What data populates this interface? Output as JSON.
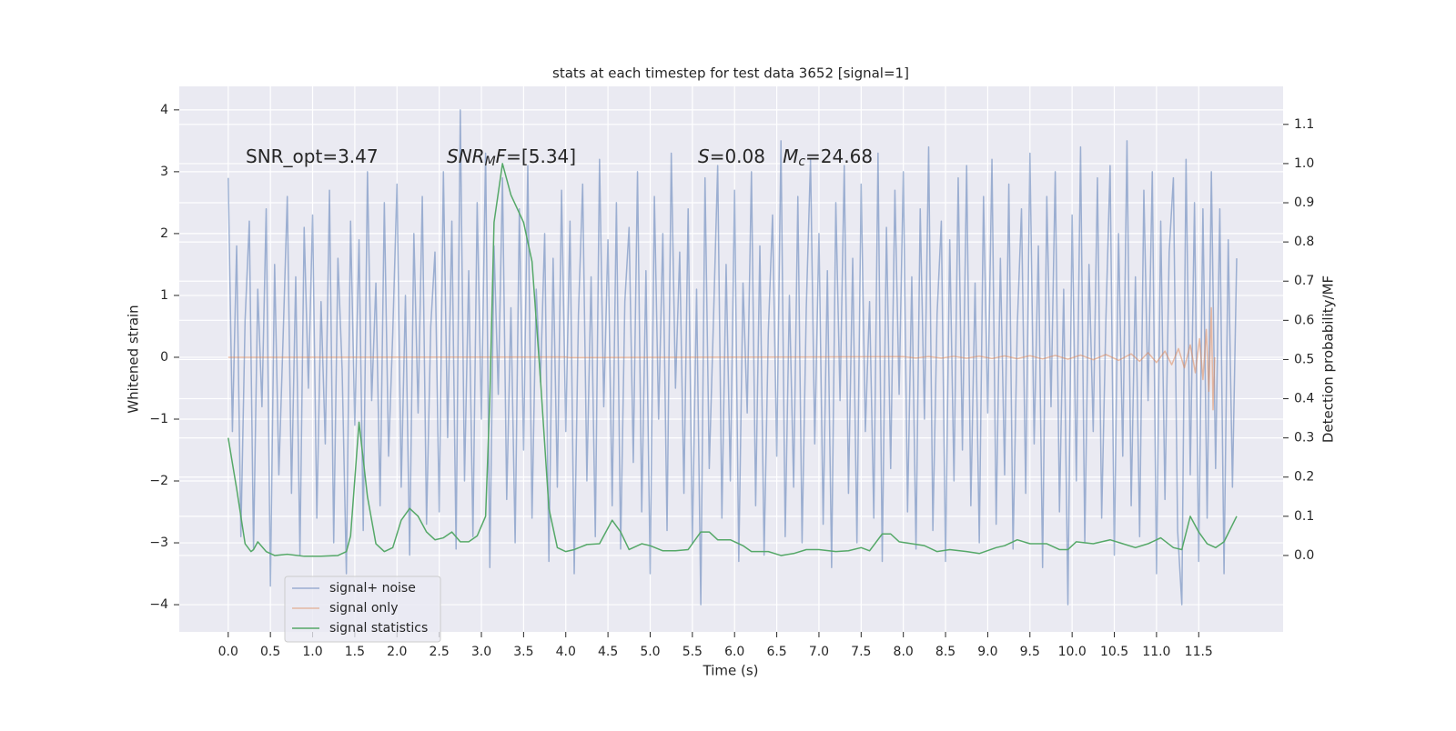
{
  "chart_data": {
    "type": "line",
    "title": "stats at each timestep for test data 3652 [signal=1]",
    "x_label": "Time (s)",
    "y_label": "Whitened strain",
    "y2_label": "Detection probability/MF",
    "xlim": [
      -0.58,
      12.5
    ],
    "ylim": [
      -4.44,
      4.38
    ],
    "y2lim": [
      -0.195,
      1.197
    ],
    "xticks": [
      {
        "value": 0,
        "label": "0.0"
      },
      0.5,
      {
        "value": 1,
        "label": "1.0"
      },
      1.5,
      {
        "value": 2,
        "label": "2.0"
      },
      2.5,
      {
        "value": 3,
        "label": "3.0"
      },
      3.5,
      {
        "value": 4,
        "label": "4.0"
      },
      4.5,
      {
        "value": 5,
        "label": "5.0"
      },
      5.5,
      {
        "value": 6,
        "label": "6.0"
      },
      6.5,
      {
        "value": 7,
        "label": "7.0"
      },
      7.5,
      {
        "value": 8,
        "label": "8.0"
      },
      8.5,
      {
        "value": 9,
        "label": "9.0"
      },
      9.5,
      {
        "value": 10,
        "label": "10.0"
      },
      10.5,
      {
        "value": 11,
        "label": "11.0"
      },
      11.5
    ],
    "yticks": [
      {
        "value": -4,
        "label": "−4"
      },
      {
        "value": -3,
        "label": "−3"
      },
      {
        "value": -2,
        "label": "−2"
      },
      {
        "value": -1,
        "label": "−1"
      },
      0,
      1,
      2,
      3,
      4
    ],
    "y2ticks": [
      {
        "value": 0,
        "label": "0.0"
      },
      0.1,
      0.2,
      0.3,
      0.4,
      0.5,
      0.6,
      0.7,
      0.8,
      0.9,
      {
        "value": 1,
        "label": "1.0"
      },
      1.1
    ],
    "grid": true,
    "legend": "lower left",
    "annotations": [
      {
        "parts": [
          {
            "text": "SNR_opt=3.47"
          }
        ]
      },
      {
        "parts": [
          {
            "text": "SNR",
            "italic": true
          },
          {
            "text": "M",
            "italic": true,
            "sub": true
          },
          {
            "text": "F",
            "italic": true
          },
          {
            "text": "=[5.34]"
          }
        ]
      },
      {
        "parts": [
          {
            "text": "S",
            "italic": true
          },
          {
            "text": "=0.08   "
          },
          {
            "text": "M",
            "italic": true
          },
          {
            "text": "c",
            "italic": true,
            "sub": true
          },
          {
            "text": "=24.68"
          }
        ]
      }
    ],
    "series": [
      {
        "name": "signal+ noise",
        "color": "#4c72b0",
        "opacity": 0.5,
        "x": [
          0,
          0.05,
          0.1,
          0.15,
          0.2,
          0.25,
          0.3,
          0.35,
          0.4,
          0.45,
          0.5,
          0.55,
          0.6,
          0.65,
          0.7,
          0.75,
          0.8,
          0.85,
          0.9,
          0.95,
          1,
          1.05,
          1.1,
          1.15,
          1.2,
          1.25,
          1.3,
          1.35,
          1.4,
          1.45,
          1.5,
          1.55,
          1.6,
          1.65,
          1.7,
          1.75,
          1.8,
          1.85,
          1.9,
          1.95,
          2,
          2.05,
          2.1,
          2.15,
          2.2,
          2.25,
          2.3,
          2.35,
          2.4,
          2.45,
          2.5,
          2.55,
          2.6,
          2.65,
          2.7,
          2.75,
          2.8,
          2.85,
          2.9,
          2.95,
          3,
          3.05,
          3.1,
          3.15,
          3.2,
          3.25,
          3.3,
          3.35,
          3.4,
          3.45,
          3.5,
          3.55,
          3.6,
          3.65,
          3.7,
          3.75,
          3.8,
          3.85,
          3.9,
          3.95,
          4,
          4.05,
          4.1,
          4.15,
          4.2,
          4.25,
          4.3,
          4.35,
          4.4,
          4.45,
          4.5,
          4.55,
          4.6,
          4.65,
          4.7,
          4.75,
          4.8,
          4.85,
          4.9,
          4.95,
          5,
          5.05,
          5.1,
          5.15,
          5.2,
          5.25,
          5.3,
          5.35,
          5.4,
          5.45,
          5.5,
          5.55,
          5.6,
          5.65,
          5.7,
          5.75,
          5.8,
          5.85,
          5.9,
          5.95,
          6,
          6.05,
          6.1,
          6.15,
          6.2,
          6.25,
          6.3,
          6.35,
          6.4,
          6.45,
          6.5,
          6.55,
          6.6,
          6.65,
          6.7,
          6.75,
          6.8,
          6.85,
          6.9,
          6.95,
          7,
          7.05,
          7.1,
          7.15,
          7.2,
          7.25,
          7.3,
          7.35,
          7.4,
          7.45,
          7.5,
          7.55,
          7.6,
          7.65,
          7.7,
          7.75,
          7.8,
          7.85,
          7.9,
          7.95,
          8,
          8.05,
          8.1,
          8.15,
          8.2,
          8.25,
          8.3,
          8.35,
          8.4,
          8.45,
          8.5,
          8.55,
          8.6,
          8.65,
          8.7,
          8.75,
          8.8,
          8.85,
          8.9,
          8.95,
          9,
          9.05,
          9.1,
          9.15,
          9.2,
          9.25,
          9.3,
          9.35,
          9.4,
          9.45,
          9.5,
          9.55,
          9.6,
          9.65,
          9.7,
          9.75,
          9.8,
          9.85,
          9.9,
          9.95,
          10,
          10.05,
          10.1,
          10.15,
          10.2,
          10.25,
          10.3,
          10.35,
          10.4,
          10.45,
          10.5,
          10.55,
          10.6,
          10.65,
          10.7,
          10.75,
          10.8,
          10.85,
          10.9,
          10.95,
          11,
          11.05,
          11.1,
          11.15,
          11.2,
          11.25,
          11.3,
          11.35,
          11.4,
          11.45,
          11.5,
          11.55,
          11.6,
          11.65,
          11.7,
          11.75,
          11.8,
          11.85,
          11.9,
          11.95
        ],
        "values": [
          2.9,
          -1.2,
          1.8,
          -2.9,
          0.6,
          2.2,
          -3.1,
          1.1,
          -0.8,
          2.4,
          -3.7,
          1.5,
          -1.9,
          0.3,
          2.6,
          -2.2,
          1.3,
          -3.2,
          2.1,
          -0.5,
          2.3,
          -2.6,
          0.9,
          -1.4,
          2.7,
          -3.0,
          1.6,
          -0.2,
          -3.5,
          2.2,
          -1.1,
          1.9,
          -2.8,
          3.0,
          -0.7,
          1.2,
          -2.4,
          2.5,
          -1.6,
          0.4,
          2.8,
          -2.1,
          1.0,
          -3.2,
          2.0,
          -0.9,
          2.6,
          -2.7,
          0.5,
          1.7,
          -2.5,
          3.0,
          -1.3,
          2.2,
          -3.1,
          4.0,
          -2.0,
          1.4,
          -2.9,
          2.5,
          -1.0,
          3.3,
          -3.4,
          1.8,
          -0.6,
          2.9,
          -2.3,
          0.8,
          -3.0,
          2.4,
          -1.5,
          3.1,
          -2.6,
          1.1,
          -0.4,
          2.0,
          -3.3,
          1.6,
          -2.1,
          2.7,
          -1.2,
          2.2,
          -3.5,
          0.7,
          2.8,
          -2.0,
          1.3,
          -2.9,
          3.2,
          -0.8,
          1.9,
          -2.4,
          2.5,
          -3.1,
          0.9,
          2.1,
          -1.7,
          3.0,
          -2.5,
          1.4,
          -3.5,
          2.6,
          -1.0,
          2.0,
          -2.8,
          3.3,
          -0.5,
          1.7,
          -2.2,
          2.4,
          -3.0,
          1.1,
          -4.0,
          2.9,
          -1.8,
          0.6,
          3.1,
          -2.6,
          1.5,
          -2.0,
          2.7,
          -3.3,
          1.2,
          -0.9,
          3.0,
          -2.4,
          1.8,
          -3.2,
          0.4,
          2.3,
          -1.6,
          3.5,
          -2.9,
          1.0,
          -2.1,
          2.6,
          -3.0,
          0.8,
          3.2,
          -1.4,
          2.0,
          -2.7,
          1.4,
          -3.4,
          2.5,
          -0.7,
          3.1,
          -2.2,
          1.6,
          -3.0,
          2.8,
          -1.2,
          0.9,
          -2.6,
          3.3,
          -3.3,
          2.1,
          -1.8,
          2.7,
          -0.6,
          3.0,
          -2.5,
          1.3,
          -3.1,
          2.4,
          -1.0,
          3.4,
          -2.8,
          0.7,
          2.2,
          -3.3,
          1.9,
          -2.0,
          2.9,
          -1.5,
          3.1,
          -2.4,
          1.2,
          -3.0,
          2.6,
          -0.9,
          3.2,
          -2.7,
          1.6,
          -1.9,
          2.8,
          -3.1,
          0.5,
          2.4,
          -2.2,
          3.3,
          -1.4,
          1.8,
          -3.4,
          2.6,
          -0.8,
          3.0,
          -2.5,
          1.1,
          -4.0,
          2.3,
          -2.0,
          3.4,
          -3.0,
          1.5,
          -1.2,
          2.9,
          -2.6,
          0.6,
          3.1,
          -3.2,
          2.0,
          -1.6,
          3.5,
          -2.4,
          1.3,
          -2.9,
          2.7,
          -0.7,
          3.0,
          -3.5,
          2.2,
          -2.3,
          1.7,
          2.9,
          -2.8,
          -4.0,
          3.2,
          -1.9,
          2.5,
          -3.3,
          2.4,
          -2.6,
          3.0,
          -1.8,
          2.4,
          -3.5,
          1.9,
          -2.1,
          1.6
        ]
      },
      {
        "name": "signal only",
        "color": "#dd8452",
        "opacity": 0.5,
        "x": [
          0,
          4,
          4.05,
          8,
          8.15,
          8.3,
          8.45,
          8.6,
          8.75,
          8.9,
          9.05,
          9.2,
          9.35,
          9.5,
          9.65,
          9.8,
          9.95,
          10.1,
          10.25,
          10.4,
          10.55,
          10.7,
          10.8,
          10.9,
          11,
          11.1,
          11.18,
          11.26,
          11.33,
          11.4,
          11.46,
          11.51,
          11.55,
          11.59,
          11.62,
          11.65,
          11.67,
          11.69
        ],
        "values": [
          0,
          0.005,
          -0.005,
          0.01,
          -0.012,
          0.013,
          -0.014,
          0.015,
          -0.016,
          0.018,
          -0.02,
          0.021,
          -0.023,
          0.025,
          -0.027,
          0.03,
          -0.032,
          0.035,
          -0.04,
          0.045,
          -0.05,
          0.055,
          -0.065,
          0.075,
          -0.085,
          0.1,
          -0.12,
          0.14,
          -0.17,
          0.2,
          -0.25,
          0.3,
          -0.36,
          0.45,
          -0.55,
          0.8,
          -0.85,
          0
        ]
      },
      {
        "name": "signal statistics",
        "color": "#55a868",
        "axis": "y2",
        "x": [
          0,
          0.1,
          0.2,
          0.27,
          0.3,
          0.35,
          0.45,
          0.55,
          0.7,
          0.9,
          1.1,
          1.3,
          1.4,
          1.45,
          1.55,
          1.65,
          1.75,
          1.85,
          1.95,
          2.05,
          2.15,
          2.25,
          2.35,
          2.45,
          2.55,
          2.65,
          2.75,
          2.85,
          2.95,
          3.05,
          3.1,
          3.15,
          3.25,
          3.35,
          3.5,
          3.6,
          3.7,
          3.8,
          3.9,
          4,
          4.1,
          4.25,
          4.4,
          4.55,
          4.65,
          4.75,
          4.9,
          5,
          5.15,
          5.3,
          5.45,
          5.6,
          5.7,
          5.8,
          5.95,
          6.1,
          6.2,
          6.4,
          6.55,
          6.7,
          6.85,
          7,
          7.2,
          7.35,
          7.5,
          7.6,
          7.75,
          7.85,
          7.95,
          8.1,
          8.25,
          8.4,
          8.55,
          8.75,
          8.9,
          9.1,
          9.2,
          9.35,
          9.5,
          9.7,
          9.85,
          9.95,
          10.05,
          10.25,
          10.45,
          10.6,
          10.75,
          10.9,
          11.05,
          11.2,
          11.3,
          11.4,
          11.5,
          11.6,
          11.7,
          11.8,
          11.95
        ],
        "values": [
          0.3,
          0.17,
          0.03,
          0.01,
          0.015,
          0.035,
          0.01,
          0,
          0.003,
          -0.002,
          -0.002,
          0,
          0.01,
          0.05,
          0.34,
          0.15,
          0.03,
          0.01,
          0.02,
          0.09,
          0.12,
          0.1,
          0.06,
          0.04,
          0.045,
          0.06,
          0.035,
          0.035,
          0.05,
          0.1,
          0.4,
          0.85,
          1.0,
          0.92,
          0.85,
          0.75,
          0.45,
          0.12,
          0.02,
          0.01,
          0.015,
          0.028,
          0.03,
          0.09,
          0.06,
          0.015,
          0.03,
          0.025,
          0.012,
          0.012,
          0.015,
          0.06,
          0.06,
          0.04,
          0.04,
          0.025,
          0.01,
          0.01,
          0,
          0.005,
          0.015,
          0.015,
          0.01,
          0.012,
          0.02,
          0.012,
          0.055,
          0.055,
          0.035,
          0.03,
          0.025,
          0.01,
          0.015,
          0.01,
          0.005,
          0.02,
          0.025,
          0.04,
          0.03,
          0.03,
          0.015,
          0.015,
          0.035,
          0.03,
          0.04,
          0.03,
          0.02,
          0.03,
          0.045,
          0.02,
          0.015,
          0.1,
          0.06,
          0.03,
          0.02,
          0.035,
          0.1
        ]
      }
    ]
  }
}
